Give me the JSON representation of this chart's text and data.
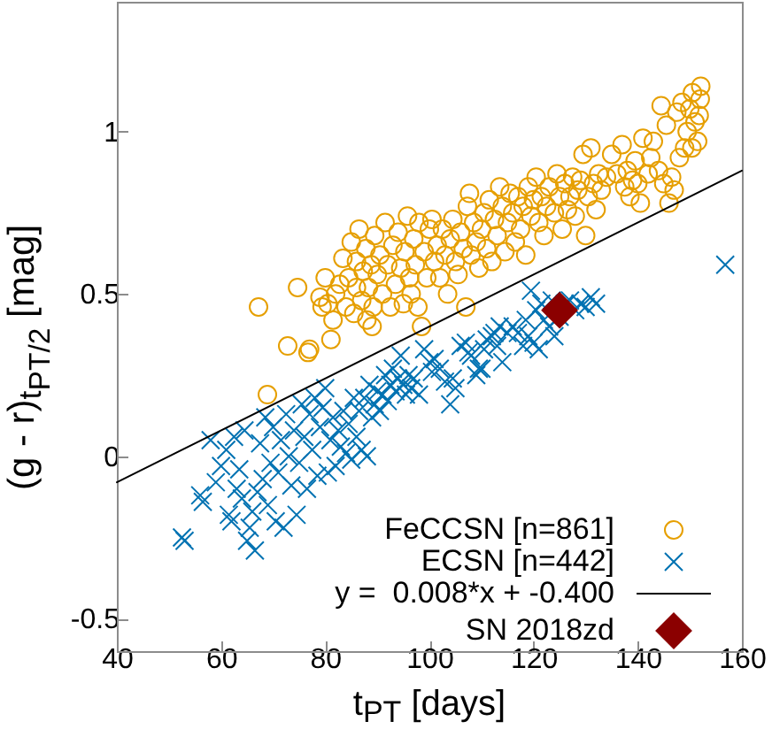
{
  "chart_data": {
    "type": "scatter",
    "xlabel": "t$_{PT}$ [days]",
    "ylabel": "(g - r)$_{t}$$_{PT/2}$ [mag]",
    "xlim": [
      40,
      160
    ],
    "ylim": [
      -0.6,
      1.4
    ],
    "xticks": [
      40,
      60,
      80,
      100,
      120,
      140,
      160
    ],
    "yticks": [
      -0.5,
      0,
      0.5,
      1
    ],
    "grid": false,
    "legend": "bottom right",
    "series": [
      {
        "name": "FeCCSN [n=861]",
        "type": "scatter",
        "marker": "circle",
        "color": "#e69f00",
        "x": [
          67.2,
          68.9,
          72.8,
          74.7,
          76.7,
          77.0,
          79.0,
          79.4,
          80.0,
          80.5,
          81.1,
          81.5,
          82.0,
          82.8,
          83.4,
          84.0,
          84.5,
          85.0,
          85.5,
          86.0,
          86.0,
          86.5,
          87.0,
          87.3,
          87.8,
          88.0,
          88.3,
          88.8,
          89.0,
          89.2,
          89.5,
          90.0,
          90.5,
          91.0,
          91.5,
          92.0,
          92.5,
          93.0,
          93.5,
          94.0,
          94.5,
          95.0,
          95.3,
          95.8,
          96.2,
          96.5,
          97.0,
          97.3,
          97.8,
          98.0,
          98.5,
          99.0,
          99.5,
          100.0,
          100.5,
          101.0,
          101.5,
          102.0,
          102.5,
          103.0,
          103.5,
          104.0,
          104.5,
          105.0,
          105.5,
          106.0,
          106.5,
          107.0,
          107.3,
          107.7,
          108.0,
          108.5,
          109.0,
          109.5,
          110.0,
          110.5,
          111.0,
          111.5,
          112.0,
          112.5,
          113.0,
          113.5,
          114.0,
          114.5,
          115.0,
          115.5,
          116.0,
          116.5,
          117.0,
          117.5,
          118.0,
          118.5,
          119.0,
          119.5,
          120.0,
          120.5,
          121.0,
          121.5,
          122.0,
          122.5,
          123.0,
          124.0,
          124.5,
          125.0,
          125.5,
          126.0,
          126.5,
          127.0,
          127.5,
          128.0,
          128.5,
          129.0,
          129.5,
          130.0,
          130.5,
          131.0,
          131.5,
          132.0,
          132.5,
          133.0,
          134.0,
          135.0,
          136.0,
          137.0,
          137.5,
          138.0,
          138.5,
          139.0,
          139.5,
          140.0,
          140.5,
          141.0,
          142.0,
          142.5,
          143.0,
          144.0,
          144.5,
          145.0,
          145.5,
          146.0,
          146.5,
          147.0,
          147.5,
          148.0,
          148.5,
          149.0,
          149.5,
          150.0,
          150.4,
          150.5,
          151.0,
          151.5,
          152.0,
          152.1,
          151.8
        ],
        "values": [
          0.46,
          0.19,
          0.34,
          0.52,
          0.32,
          0.33,
          0.49,
          0.46,
          0.55,
          0.47,
          0.36,
          0.42,
          0.5,
          0.53,
          0.61,
          0.46,
          0.55,
          0.66,
          0.44,
          0.52,
          0.6,
          0.7,
          0.48,
          0.57,
          0.64,
          0.42,
          0.52,
          0.59,
          0.4,
          0.46,
          0.68,
          0.56,
          0.62,
          0.5,
          0.72,
          0.59,
          0.46,
          0.65,
          0.53,
          0.69,
          0.58,
          0.47,
          0.63,
          0.74,
          0.55,
          0.5,
          0.67,
          0.59,
          0.46,
          0.72,
          0.4,
          0.63,
          0.55,
          0.7,
          0.73,
          0.6,
          0.65,
          0.55,
          0.7,
          0.62,
          0.5,
          0.67,
          0.73,
          0.6,
          0.56,
          0.69,
          0.64,
          0.46,
          0.77,
          0.81,
          0.62,
          0.72,
          0.66,
          0.58,
          0.7,
          0.75,
          0.64,
          0.79,
          0.6,
          0.73,
          0.68,
          0.83,
          0.77,
          0.63,
          0.72,
          0.81,
          0.75,
          0.66,
          0.8,
          0.7,
          0.77,
          0.62,
          0.83,
          0.74,
          0.79,
          0.86,
          0.72,
          0.8,
          0.68,
          0.77,
          0.83,
          0.75,
          0.87,
          0.8,
          0.7,
          0.84,
          0.76,
          0.8,
          0.86,
          0.74,
          0.82,
          0.85,
          0.93,
          0.68,
          0.8,
          0.95,
          0.84,
          0.76,
          0.87,
          0.82,
          0.86,
          0.93,
          0.87,
          0.96,
          0.83,
          0.88,
          0.8,
          0.85,
          0.91,
          0.84,
          0.78,
          0.98,
          0.87,
          0.92,
          0.97,
          0.88,
          1.08,
          0.84,
          1.02,
          0.78,
          0.86,
          0.82,
          1.06,
          0.92,
          1.09,
          0.95,
          1.0,
          1.07,
          0.95,
          1.12,
          1.03,
          0.97,
          1.1,
          1.14,
          1.05
        ]
      },
      {
        "name": "ECSN [n=442]",
        "type": "scatter",
        "marker": "cross",
        "color": "#0072b2",
        "x": [
          53.0,
          52.5,
          56.0,
          56.5,
          58.0,
          59.0,
          60.0,
          61.0,
          61.5,
          62.0,
          62.5,
          63.0,
          63.5,
          64.0,
          64.5,
          65.0,
          65.5,
          66.0,
          66.5,
          67.0,
          67.5,
          68.0,
          68.5,
          69.0,
          69.5,
          70.0,
          70.5,
          71.0,
          71.5,
          72.0,
          72.5,
          73.0,
          73.5,
          74.0,
          74.5,
          75.0,
          75.5,
          76.0,
          76.5,
          77.0,
          77.5,
          78.0,
          78.5,
          79.0,
          79.5,
          80.0,
          80.5,
          81.0,
          81.5,
          82.0,
          82.5,
          83.0,
          83.5,
          84.0,
          84.5,
          85.0,
          85.5,
          86.0,
          86.5,
          87.0,
          87.5,
          88.0,
          88.5,
          89.0,
          89.5,
          90.0,
          90.5,
          91.0,
          91.5,
          92.0,
          92.5,
          93.0,
          93.5,
          94.0,
          94.5,
          95.0,
          95.5,
          96.0,
          96.5,
          97.0,
          98.0,
          99.0,
          100.0,
          100.5,
          101.0,
          102.0,
          103.0,
          104.0,
          104.5,
          105.0,
          106.0,
          107.0,
          107.5,
          108.0,
          109.0,
          109.5,
          110.0,
          110.5,
          111.0,
          112.0,
          112.5,
          113.0,
          113.5,
          114.0,
          115.0,
          116.0,
          117.0,
          118.0,
          118.5,
          119.0,
          119.5,
          120.0,
          120.5,
          121.0,
          121.5,
          122.0,
          123.0,
          123.5,
          124.0,
          125.0,
          126.0,
          127.0,
          128.0,
          129.0,
          130.0,
          131.0,
          132.0,
          156.8
        ],
        "values": [
          -0.26,
          -0.25,
          -0.12,
          -0.14,
          0.05,
          -0.08,
          -0.03,
          0.02,
          -0.18,
          -0.2,
          0.06,
          -0.1,
          -0.04,
          -0.13,
          0.08,
          -0.26,
          -0.22,
          -0.17,
          -0.29,
          -0.11,
          0.04,
          -0.07,
          0.12,
          -0.15,
          -0.02,
          0.09,
          -0.2,
          -0.05,
          0.05,
          -0.22,
          0.13,
          0.0,
          -0.09,
          0.08,
          -0.18,
          -0.02,
          0.16,
          0.06,
          -0.1,
          0.13,
          0.02,
          0.18,
          -0.06,
          0.09,
          0.15,
          0.21,
          -0.05,
          0.05,
          0.12,
          -0.03,
          0.08,
          0.03,
          0.14,
          0.01,
          0.1,
          -0.01,
          0.18,
          0.06,
          0.14,
          0.02,
          0.18,
          0.0,
          0.22,
          0.12,
          0.16,
          0.2,
          0.14,
          0.19,
          0.25,
          0.17,
          0.22,
          0.27,
          0.2,
          0.24,
          0.31,
          0.22,
          0.19,
          0.25,
          0.21,
          0.24,
          0.19,
          0.33,
          0.29,
          0.26,
          0.3,
          0.27,
          0.23,
          0.16,
          0.24,
          0.21,
          0.34,
          0.35,
          0.32,
          0.31,
          0.25,
          0.27,
          0.27,
          0.33,
          0.36,
          0.37,
          0.38,
          0.34,
          0.4,
          0.29,
          0.38,
          0.4,
          0.38,
          0.34,
          0.42,
          0.37,
          0.51,
          0.35,
          0.45,
          0.33,
          0.47,
          0.42,
          0.4,
          0.48,
          0.37,
          0.43,
          0.47,
          0.48,
          0.45,
          0.47,
          0.46,
          0.49,
          0.47,
          0.59
        ]
      },
      {
        "name": "y =  0.008*x + -0.400",
        "type": "line",
        "color": "#000000",
        "x": [
          40,
          160
        ],
        "values": [
          -0.08,
          0.88
        ]
      },
      {
        "name": "SN 2018zd",
        "type": "scatter",
        "marker": "diamond",
        "color": "#8b0000",
        "x": [
          125
        ],
        "values": [
          0.45
        ]
      }
    ]
  }
}
